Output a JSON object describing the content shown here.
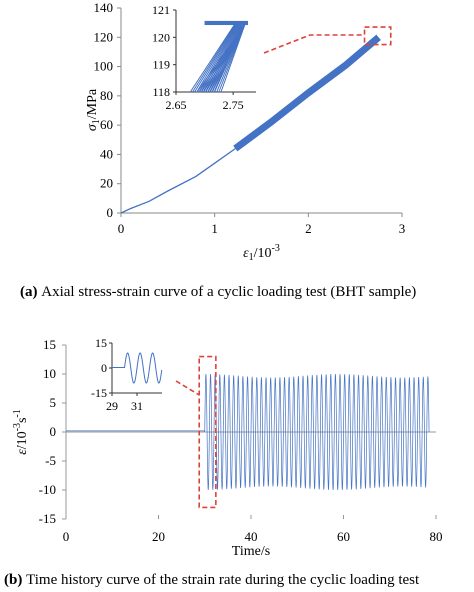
{
  "chart_data": [
    {
      "type": "line",
      "panel": "(a)",
      "caption": "Axial stress-strain curve of a cyclic loading test (BHT sample)",
      "xlabel": "ε₁/10⁻³",
      "ylabel": "σ₁/MPa",
      "xlim": [
        0,
        3
      ],
      "ylim": [
        0,
        140
      ],
      "xticks": [
        "0",
        "1",
        "2",
        "3"
      ],
      "yticks": [
        "0",
        "20",
        "40",
        "60",
        "80",
        "100",
        "120",
        "140"
      ],
      "series": [
        {
          "kind": "monotonic loading",
          "x": [
            0,
            0.1,
            0.3,
            0.5,
            0.8,
            1.0,
            1.22
          ],
          "y": [
            0,
            3,
            8,
            15,
            25,
            34,
            44
          ]
        },
        {
          "kind": "cyclic band",
          "x": [
            1.22,
            1.6,
            2.0,
            2.4,
            2.75
          ],
          "y": [
            44,
            62,
            82,
            101,
            120
          ],
          "band_half_width": 1.6
        }
      ],
      "inset": {
        "xlim": [
          2.65,
          2.79
        ],
        "ylim": [
          118,
          121
        ],
        "xticks": [
          "2.65",
          "2.75"
        ],
        "yticks": [
          "118",
          "119",
          "120",
          "121"
        ],
        "loops": 12
      }
    },
    {
      "type": "line",
      "panel": "(b)",
      "caption": "Time history curve of the strain rate during the cyclic loading test",
      "xlabel": "Time/s",
      "ylabel": "ε̇/10⁻³s⁻¹",
      "xlim": [
        0,
        80
      ],
      "ylim": [
        -15,
        15
      ],
      "xticks": [
        "0",
        "20",
        "40",
        "60",
        "80"
      ],
      "yticks": [
        "15",
        "10",
        "5",
        "0",
        "-5",
        "-10",
        "-15"
      ],
      "series": [
        {
          "kind": "strain rate",
          "baseline": 0.2,
          "oscillation_start": 30,
          "oscillation_end": 78.5,
          "amplitude": 10,
          "frequency_hz": 1
        }
      ],
      "inset": {
        "xlim": [
          29,
          33
        ],
        "ylim": [
          -15,
          15
        ],
        "xticks": [
          "29",
          "31"
        ],
        "yticks": [
          "15",
          "0",
          "-15"
        ]
      }
    }
  ]
}
